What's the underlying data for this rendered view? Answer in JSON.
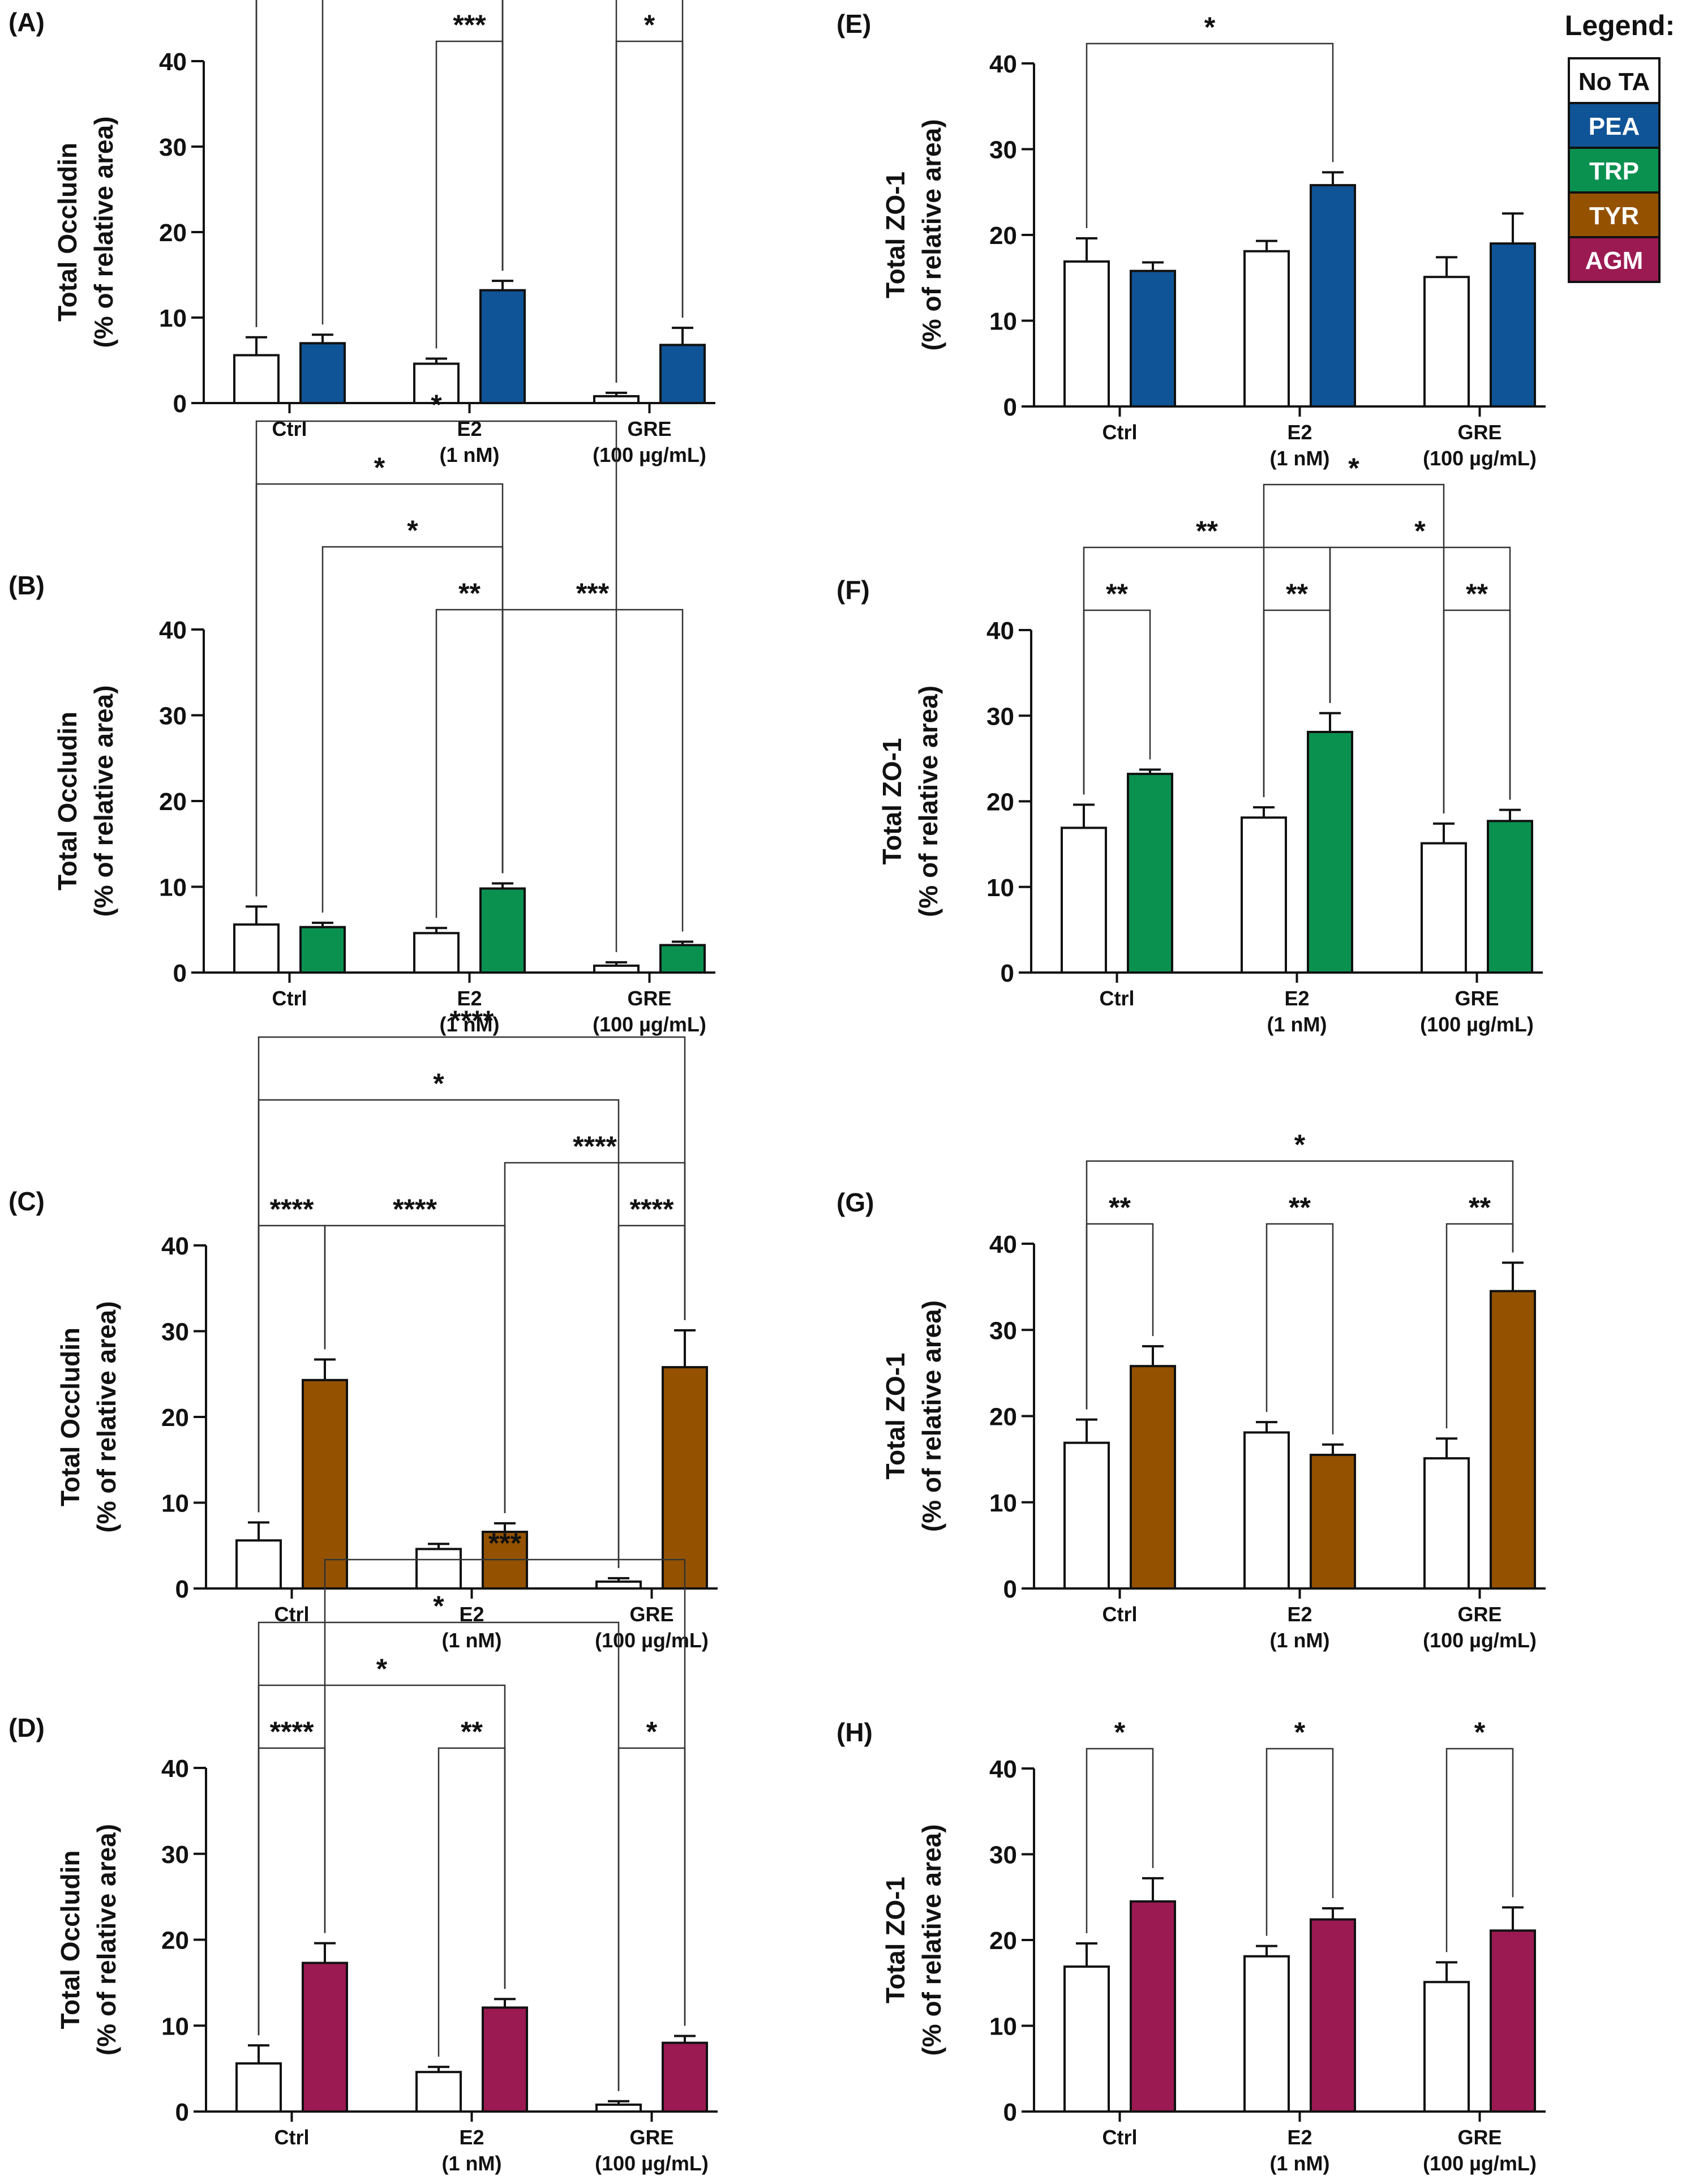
{
  "legend": {
    "title": "Legend:",
    "items": [
      {
        "key": "none",
        "label": "No TA",
        "color": "#ffffff",
        "text_color": "#111111"
      },
      {
        "key": "pea",
        "label": "PEA",
        "color": "#0f5496",
        "text_color": "#ffffff"
      },
      {
        "key": "trp",
        "label": "TRP",
        "color": "#0a9150",
        "text_color": "#ffffff"
      },
      {
        "key": "tyr",
        "label": "TYR",
        "color": "#945200",
        "text_color": "#ffffff"
      },
      {
        "key": "agm",
        "label": "AGM",
        "color": "#9b1a52",
        "text_color": "#ffffff"
      }
    ]
  },
  "chart_data": [
    {
      "id": "A",
      "panel_label": "(A)",
      "type": "bar",
      "ylabel": [
        "Total Occludin",
        "(% of relative area)"
      ],
      "ylim": [
        0,
        40
      ],
      "yticks": [
        "0",
        "10",
        "20",
        "30",
        "40"
      ],
      "categories": [
        [
          "Ctrl"
        ],
        [
          "E2",
          "(1 nM)"
        ],
        [
          "GRE",
          "(100 µg/mL)"
        ]
      ],
      "treatment": "pea",
      "series": [
        {
          "name": "No TA",
          "values": [
            5.6,
            4.6,
            0.8
          ],
          "errors": [
            2.1,
            0.6,
            0.4
          ]
        },
        {
          "name": "PEA",
          "values": [
            7.0,
            13.2,
            6.8
          ],
          "errors": [
            1.0,
            1.1,
            2.0
          ]
        }
      ],
      "comparisons": [
        {
          "from": 0,
          "to": 4,
          "label": "*"
        },
        {
          "from": 0,
          "to": 3,
          "label": "**"
        },
        {
          "from": 1,
          "to": 3,
          "label": "*"
        },
        {
          "from": 3,
          "to": 5,
          "label": "*"
        },
        {
          "from": 2,
          "to": 3,
          "label": "***"
        },
        {
          "from": 4,
          "to": 5,
          "label": "*"
        }
      ]
    },
    {
      "id": "B",
      "panel_label": "(B)",
      "type": "bar",
      "ylabel": [
        "Total Occludin",
        "(% of relative area)"
      ],
      "ylim": [
        0,
        40
      ],
      "yticks": [
        "0",
        "10",
        "20",
        "30",
        "40"
      ],
      "categories": [
        [
          "Ctrl"
        ],
        [
          "E2",
          "(1 nM)"
        ],
        [
          "GRE",
          "(100 µg/mL)"
        ]
      ],
      "treatment": "trp",
      "series": [
        {
          "name": "No TA",
          "values": [
            5.6,
            4.6,
            0.8
          ],
          "errors": [
            2.1,
            0.6,
            0.4
          ]
        },
        {
          "name": "TRP",
          "values": [
            5.3,
            9.8,
            3.2
          ],
          "errors": [
            0.5,
            0.6,
            0.4
          ]
        }
      ],
      "comparisons": [
        {
          "from": 0,
          "to": 4,
          "label": "*"
        },
        {
          "from": 0,
          "to": 3,
          "label": "*"
        },
        {
          "from": 1,
          "to": 3,
          "label": "*"
        },
        {
          "from": 2,
          "to": 3,
          "label": "**"
        },
        {
          "from": 3,
          "to": 5,
          "label": "***"
        }
      ]
    },
    {
      "id": "C",
      "panel_label": "(C)",
      "type": "bar",
      "ylabel": [
        "Total Occludin",
        "(% of relative area)"
      ],
      "ylim": [
        0,
        40
      ],
      "yticks": [
        "0",
        "10",
        "20",
        "30",
        "40"
      ],
      "categories": [
        [
          "Ctrl"
        ],
        [
          "E2",
          "(1 nM)"
        ],
        [
          "GRE",
          "(100 µg/mL)"
        ]
      ],
      "treatment": "tyr",
      "series": [
        {
          "name": "No TA",
          "values": [
            5.6,
            4.6,
            0.8
          ],
          "errors": [
            2.1,
            0.6,
            0.4
          ]
        },
        {
          "name": "TYR",
          "values": [
            24.3,
            6.6,
            25.8
          ],
          "errors": [
            2.4,
            1.0,
            4.3
          ]
        }
      ],
      "comparisons": [
        {
          "from": 0,
          "to": 5,
          "label": "****"
        },
        {
          "from": 0,
          "to": 4,
          "label": "*"
        },
        {
          "from": 3,
          "to": 5,
          "label": "****"
        },
        {
          "from": 0,
          "to": 1,
          "label": "****"
        },
        {
          "from": 1,
          "to": 3,
          "label": "****"
        },
        {
          "from": 4,
          "to": 5,
          "label": "****"
        }
      ]
    },
    {
      "id": "D",
      "panel_label": "(D)",
      "type": "bar",
      "ylabel": [
        "Total Occludin",
        "(% of relative area)"
      ],
      "ylim": [
        0,
        40
      ],
      "yticks": [
        "0",
        "10",
        "20",
        "30",
        "40"
      ],
      "categories": [
        [
          "Ctrl"
        ],
        [
          "E2",
          "(1 nM)"
        ],
        [
          "GRE",
          "(100 µg/mL)"
        ]
      ],
      "treatment": "agm",
      "series": [
        {
          "name": "No TA",
          "values": [
            5.6,
            4.6,
            0.8
          ],
          "errors": [
            2.1,
            0.6,
            0.4
          ]
        },
        {
          "name": "AGM",
          "values": [
            17.3,
            12.1,
            8.0
          ],
          "errors": [
            2.3,
            1.0,
            0.8
          ]
        }
      ],
      "comparisons": [
        {
          "from": 0,
          "to": 4,
          "label": "*"
        },
        {
          "from": 1,
          "to": 5,
          "label": "***"
        },
        {
          "from": 0,
          "to": 3,
          "label": "*"
        },
        {
          "from": 0,
          "to": 1,
          "label": "****"
        },
        {
          "from": 2,
          "to": 3,
          "label": "**"
        },
        {
          "from": 4,
          "to": 5,
          "label": "*"
        }
      ]
    },
    {
      "id": "E",
      "panel_label": "(E)",
      "type": "bar",
      "ylabel": [
        "Total ZO-1",
        "(% of relative area)"
      ],
      "ylim": [
        0,
        40
      ],
      "yticks": [
        "0",
        "10",
        "20",
        "30",
        "40"
      ],
      "categories": [
        [
          "Ctrl"
        ],
        [
          "E2",
          "(1 nM)"
        ],
        [
          "GRE",
          "(100 µg/mL)"
        ]
      ],
      "treatment": "pea",
      "series": [
        {
          "name": "No TA",
          "values": [
            16.9,
            18.1,
            15.1
          ],
          "errors": [
            2.7,
            1.2,
            2.3
          ]
        },
        {
          "name": "PEA",
          "values": [
            15.8,
            25.8,
            19.0
          ],
          "errors": [
            1.0,
            1.5,
            3.5
          ]
        }
      ],
      "comparisons": [
        {
          "from": 0,
          "to": 3,
          "label": "*"
        }
      ]
    },
    {
      "id": "F",
      "panel_label": "(F)",
      "type": "bar",
      "ylabel": [
        "Total ZO-1",
        "(% of relative area)"
      ],
      "ylim": [
        0,
        40
      ],
      "yticks": [
        "0",
        "10",
        "20",
        "30",
        "40"
      ],
      "categories": [
        [
          "Ctrl"
        ],
        [
          "E2",
          "(1 nM)"
        ],
        [
          "GRE",
          "(100 µg/mL)"
        ]
      ],
      "treatment": "trp",
      "series": [
        {
          "name": "No TA",
          "values": [
            16.9,
            18.1,
            15.1
          ],
          "errors": [
            2.7,
            1.2,
            2.3
          ]
        },
        {
          "name": "TRP",
          "values": [
            23.2,
            28.1,
            17.7
          ],
          "errors": [
            0.5,
            2.2,
            1.3
          ]
        }
      ],
      "comparisons": [
        {
          "from": 0,
          "to": 3,
          "label": "**"
        },
        {
          "from": 3,
          "to": 5,
          "label": "*"
        },
        {
          "from": 2,
          "to": 4,
          "label": "*"
        },
        {
          "from": 0,
          "to": 1,
          "label": "**"
        },
        {
          "from": 2,
          "to": 3,
          "label": "**"
        },
        {
          "from": 4,
          "to": 5,
          "label": "**"
        }
      ]
    },
    {
      "id": "G",
      "panel_label": "(G)",
      "type": "bar",
      "ylabel": [
        "Total ZO-1",
        "(% of relative area)"
      ],
      "ylim": [
        0,
        40
      ],
      "yticks": [
        "0",
        "10",
        "20",
        "30",
        "40"
      ],
      "categories": [
        [
          "Ctrl"
        ],
        [
          "E2",
          "(1 nM)"
        ],
        [
          "GRE",
          "(100 µg/mL)"
        ]
      ],
      "treatment": "tyr",
      "series": [
        {
          "name": "No TA",
          "values": [
            16.9,
            18.1,
            15.1
          ],
          "errors": [
            2.7,
            1.2,
            2.3
          ]
        },
        {
          "name": "TYR",
          "values": [
            25.8,
            15.5,
            34.5
          ],
          "errors": [
            2.3,
            1.2,
            3.3
          ]
        }
      ],
      "comparisons": [
        {
          "from": 0,
          "to": 5,
          "label": "*"
        },
        {
          "from": 0,
          "to": 1,
          "label": "**"
        },
        {
          "from": 2,
          "to": 3,
          "label": "**"
        },
        {
          "from": 4,
          "to": 5,
          "label": "**"
        }
      ]
    },
    {
      "id": "H",
      "panel_label": "(H)",
      "type": "bar",
      "ylabel": [
        "Total ZO-1",
        "(% of relative area)"
      ],
      "ylim": [
        0,
        40
      ],
      "yticks": [
        "0",
        "10",
        "20",
        "30",
        "40"
      ],
      "categories": [
        [
          "Ctrl"
        ],
        [
          "E2",
          "(1 nM)"
        ],
        [
          "GRE",
          "(100 µg/mL)"
        ]
      ],
      "treatment": "agm",
      "series": [
        {
          "name": "No TA",
          "values": [
            16.9,
            18.1,
            15.1
          ],
          "errors": [
            2.7,
            1.2,
            2.3
          ]
        },
        {
          "name": "AGM",
          "values": [
            24.5,
            22.4,
            21.1
          ],
          "errors": [
            2.7,
            1.3,
            2.7
          ]
        }
      ],
      "comparisons": [
        {
          "from": 0,
          "to": 1,
          "label": "*"
        },
        {
          "from": 2,
          "to": 3,
          "label": "*"
        },
        {
          "from": 4,
          "to": 5,
          "label": "*"
        }
      ]
    }
  ]
}
